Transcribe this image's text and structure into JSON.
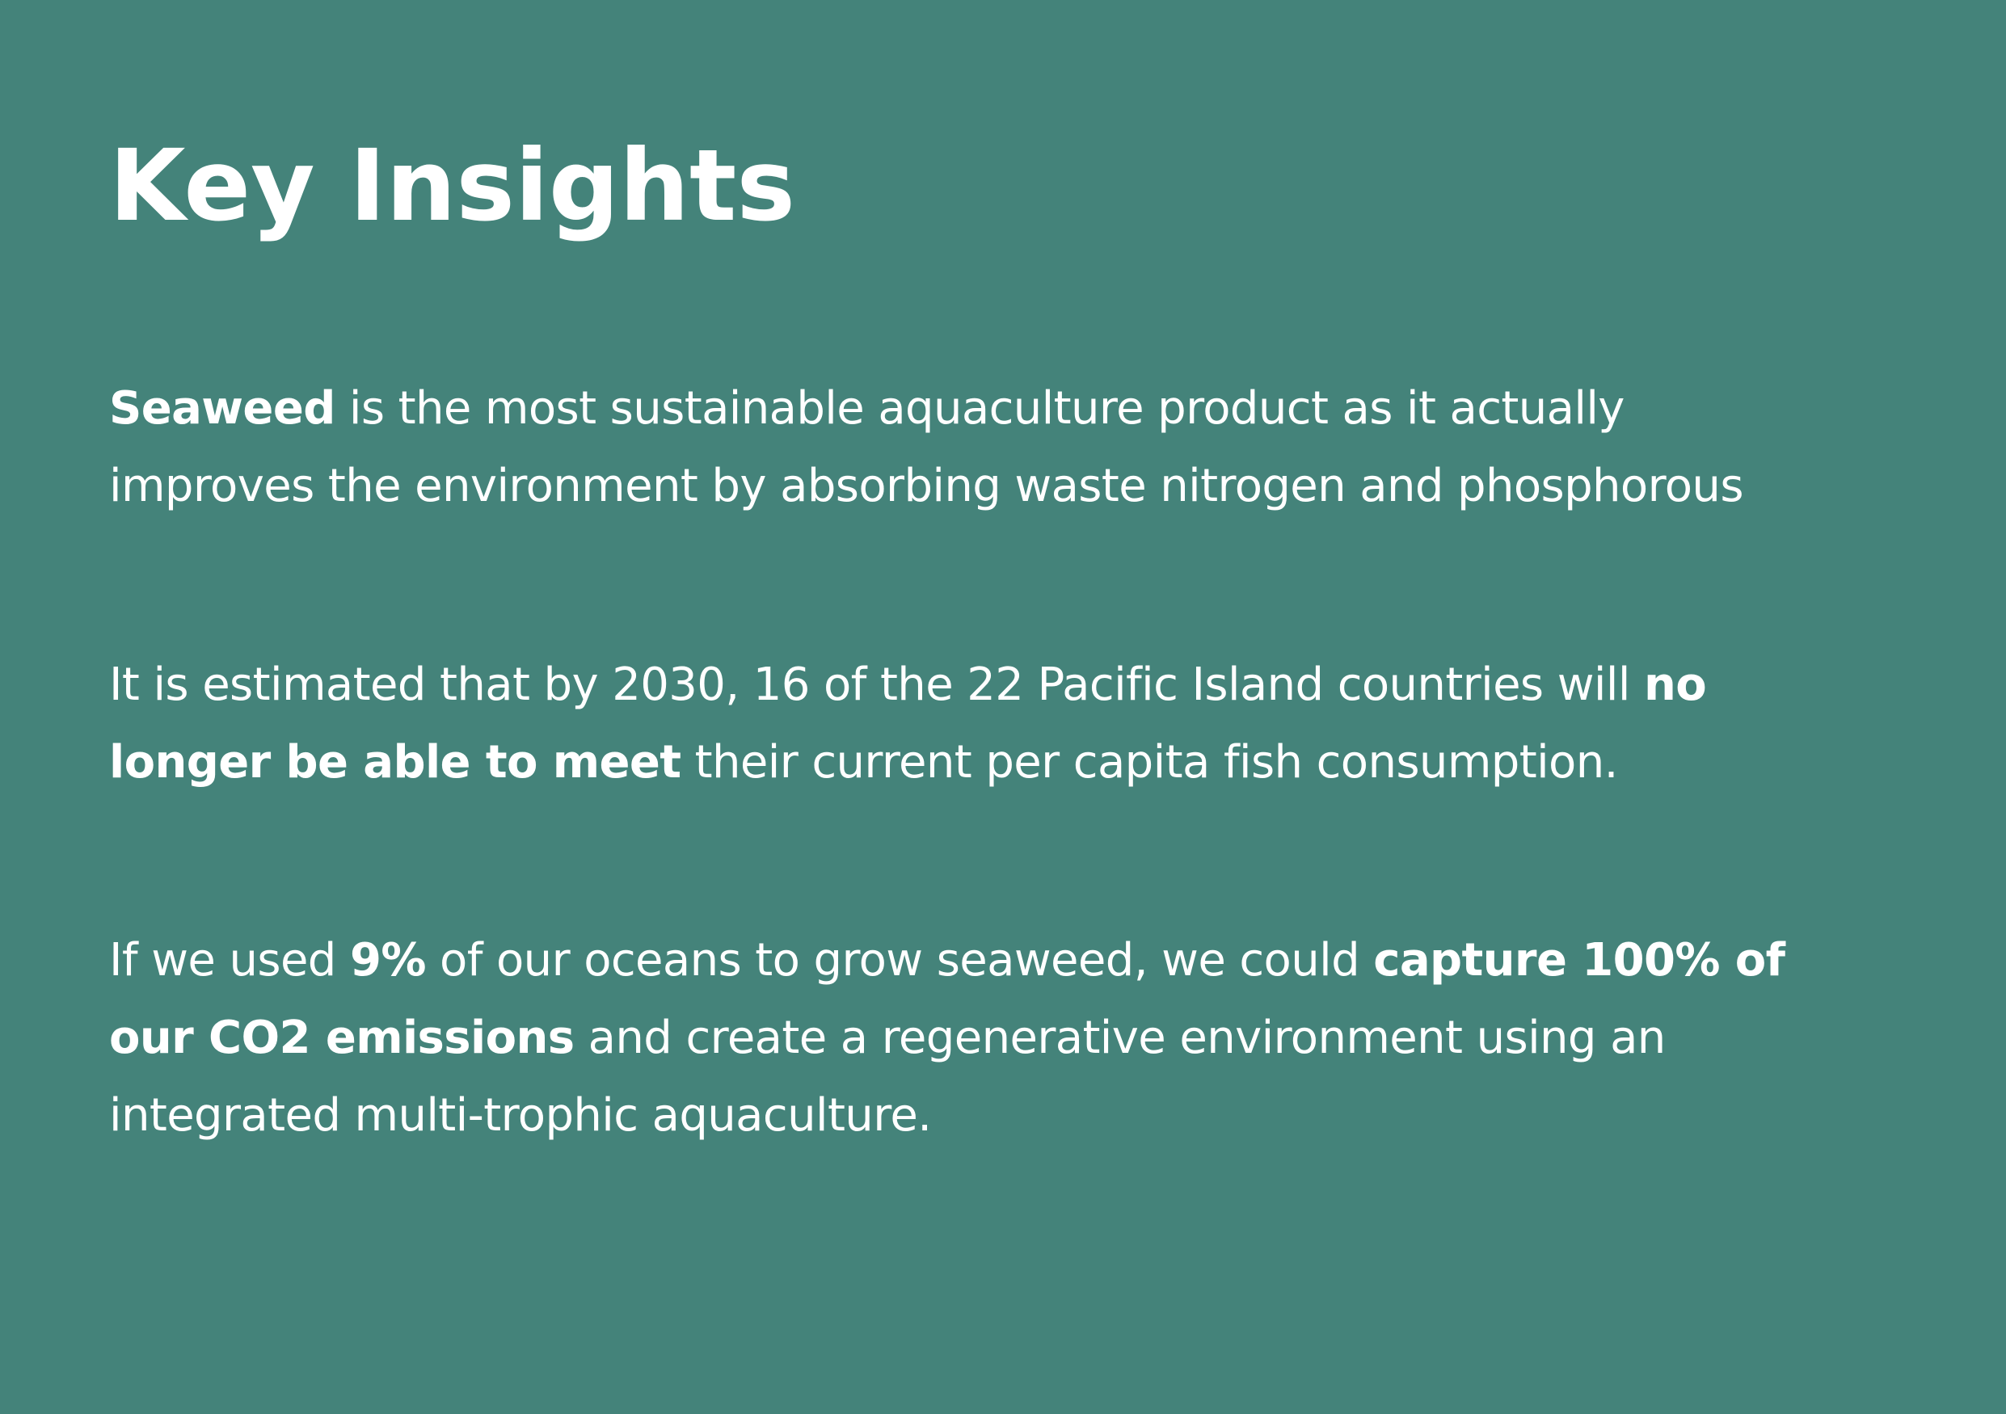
{
  "title": "Key Insights",
  "paragraphs": [
    {
      "lines": [
        {
          "b": "Seaweed",
          "t": " is the most sustainable aquaculture product as it actually"
        },
        {
          "t": "improves the environment by absorbing waste nitrogen and phosphorous"
        }
      ]
    },
    {
      "lines": [
        {
          "t": "It is estimated that by 2030, 16 of the 22 Pacific Island countries will ",
          "b": "no"
        },
        {
          "b": "longer be able to meet",
          "t": " their current per capita fish consumption."
        }
      ]
    },
    {
      "lines": [
        {
          "t1": "If we used ",
          "b1": "9%",
          "t2": " of our oceans to grow seaweed, we could ",
          "b2": "capture 100% of"
        },
        {
          "b": "our CO2 emissions",
          "t": " and create a regenerative environment using an"
        },
        {
          "t": "integrated multi-trophic aquaculture."
        }
      ]
    }
  ]
}
